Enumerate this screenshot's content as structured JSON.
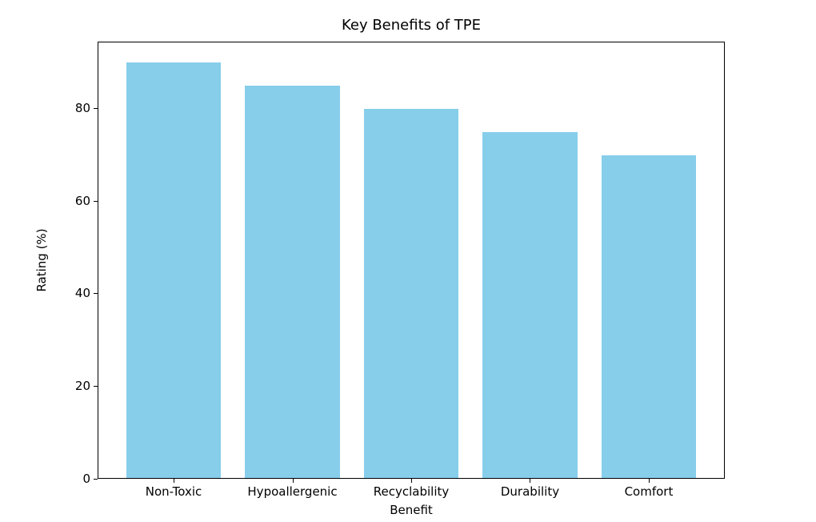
{
  "chart_data": {
    "type": "bar",
    "title": "Key Benefits of TPE",
    "xlabel": "Benefit",
    "ylabel": "Rating (%)",
    "categories": [
      "Non-Toxic",
      "Hypoallergenic",
      "Recyclability",
      "Durability",
      "Comfort"
    ],
    "values": [
      90,
      85,
      80,
      75,
      70
    ],
    "yticks": [
      0,
      20,
      40,
      60,
      80
    ],
    "ylim": [
      0,
      94.5
    ],
    "bar_color": "#87CEEB",
    "axis_color": "#000000",
    "text_color": "#000000",
    "grid": false,
    "legend": "none"
  }
}
